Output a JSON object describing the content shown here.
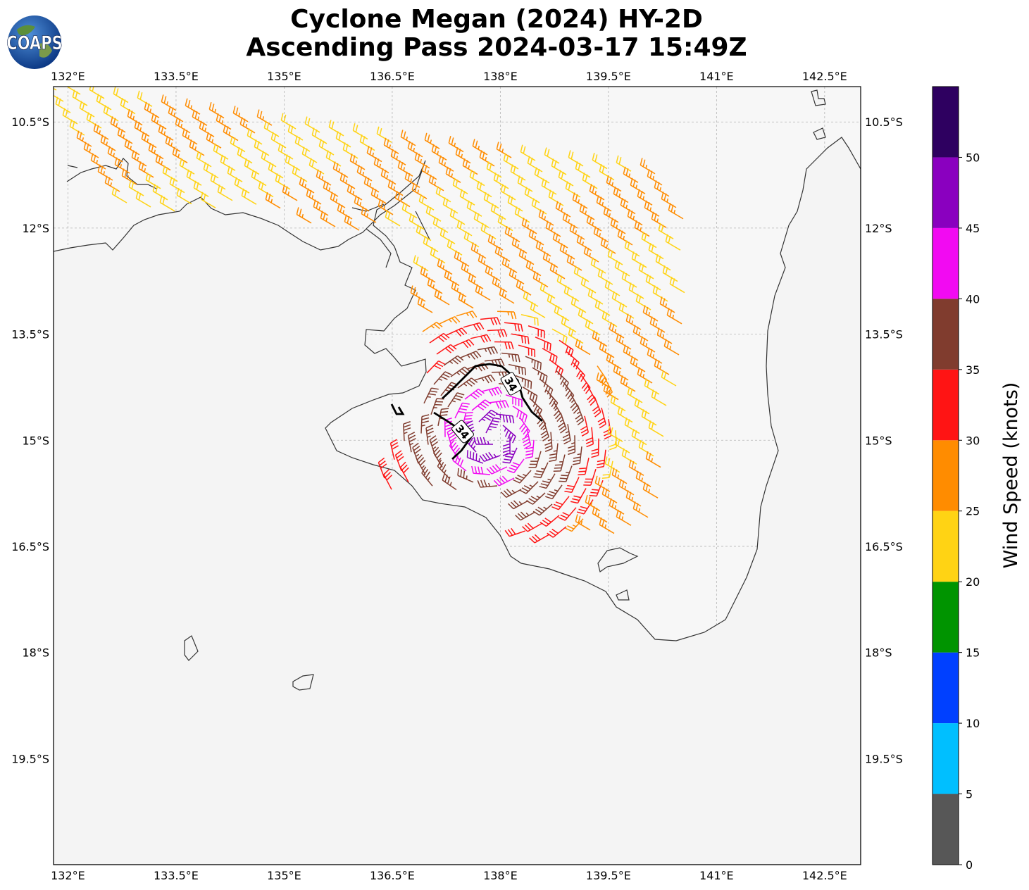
{
  "header": {
    "line1": "Cyclone Megan (2024) HY-2D",
    "line2": "Ascending Pass 2024-03-17 15:49Z",
    "logo_text": "COAPS"
  },
  "map": {
    "lon_range": [
      131.8,
      143.0
    ],
    "lat_range": [
      -21.0,
      -10.0
    ],
    "lon_ticks": [
      {
        "value": 132.0,
        "label": "132°E"
      },
      {
        "value": 133.5,
        "label": "133.5°E"
      },
      {
        "value": 135.0,
        "label": "135°E"
      },
      {
        "value": 136.5,
        "label": "136.5°E"
      },
      {
        "value": 138.0,
        "label": "138°E"
      },
      {
        "value": 139.5,
        "label": "139.5°E"
      },
      {
        "value": 141.0,
        "label": "141°E"
      },
      {
        "value": 142.5,
        "label": "142.5°E"
      }
    ],
    "lat_ticks": [
      {
        "value": -10.5,
        "label": "10.5°S"
      },
      {
        "value": -12.0,
        "label": "12°S"
      },
      {
        "value": -13.5,
        "label": "13.5°S"
      },
      {
        "value": -15.0,
        "label": "15°S"
      },
      {
        "value": -16.5,
        "label": "16.5°S"
      },
      {
        "value": -18.0,
        "label": "18°S"
      },
      {
        "value": -19.5,
        "label": "19.5°S"
      }
    ],
    "gridlines": true,
    "contour_label": "34",
    "colors": {
      "coast": "#333333",
      "land": "#f2f2f2",
      "grid": "#b0b0b0",
      "contour": "#000000"
    }
  },
  "colorbar": {
    "label": "Wind Speed (knots)",
    "bins": [
      {
        "min": 0,
        "max": 5,
        "color": "#575757"
      },
      {
        "min": 5,
        "max": 10,
        "color": "#00bfff"
      },
      {
        "min": 10,
        "max": 15,
        "color": "#0040ff"
      },
      {
        "min": 15,
        "max": 20,
        "color": "#009400"
      },
      {
        "min": 20,
        "max": 25,
        "color": "#ffd314"
      },
      {
        "min": 25,
        "max": 30,
        "color": "#ff8c00"
      },
      {
        "min": 30,
        "max": 35,
        "color": "#ff1414"
      },
      {
        "min": 35,
        "max": 40,
        "color": "#803c2e"
      },
      {
        "min": 40,
        "max": 45,
        "color": "#f20af2"
      },
      {
        "min": 45,
        "max": 50,
        "color": "#8a00bf"
      },
      {
        "min": 50,
        "max": 55,
        "color": "#2e0060"
      }
    ],
    "ticks": [
      "0",
      "5",
      "10",
      "15",
      "20",
      "25",
      "30",
      "35",
      "40",
      "45",
      "50"
    ]
  }
}
